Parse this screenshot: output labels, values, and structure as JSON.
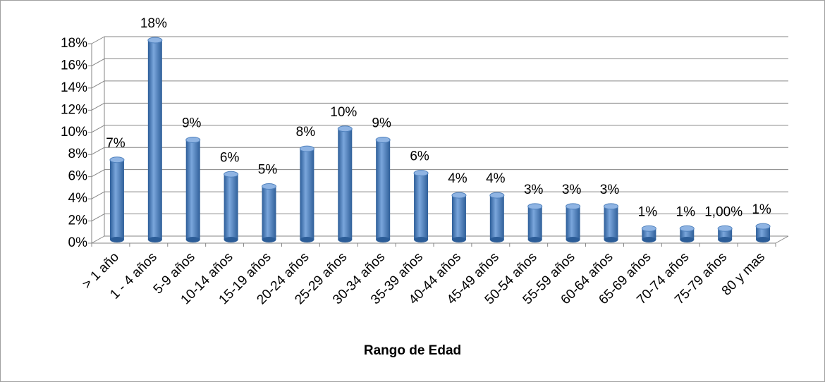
{
  "chart_data": {
    "type": "bar",
    "x_label": "Rango de Edad",
    "categories": [
      "> 1 año",
      "1 - 4 años",
      "5-9 años",
      "10-14 años",
      "15-19 años",
      "20-24 años",
      "25-29 años",
      "30-34 años",
      "35-39 años",
      "40-44 años",
      "45-49 años",
      "50-54 años",
      "55-59 años",
      "60-64 años",
      "65-69 años",
      "70-74 años",
      "75-79 años",
      "80 y mas"
    ],
    "values": [
      7.2,
      18,
      9,
      5.9,
      4.8,
      8.2,
      10,
      9,
      6,
      4,
      4,
      3,
      3,
      3,
      1,
      1,
      1.0,
      1.2
    ],
    "value_labels": [
      "7%",
      "18%",
      "9%",
      "6%",
      "5%",
      "8%",
      "10%",
      "9%",
      "6%",
      "4%",
      "4%",
      "3%",
      "3%",
      "3%",
      "1%",
      "1%",
      "1,00%",
      "1%"
    ],
    "color": "#4f81bd",
    "ylim": [
      0,
      18
    ],
    "yticks": [
      {
        "value": 0,
        "label": "0%"
      },
      {
        "value": 2,
        "label": "2%"
      },
      {
        "value": 4,
        "label": "4%"
      },
      {
        "value": 6,
        "label": "6%"
      },
      {
        "value": 8,
        "label": "8%"
      },
      {
        "value": 10,
        "label": "10%"
      },
      {
        "value": 12,
        "label": "12%"
      },
      {
        "value": 14,
        "label": "14%"
      },
      {
        "value": 16,
        "label": "16%"
      },
      {
        "value": 18,
        "label": "18%"
      }
    ],
    "grid": true
  }
}
